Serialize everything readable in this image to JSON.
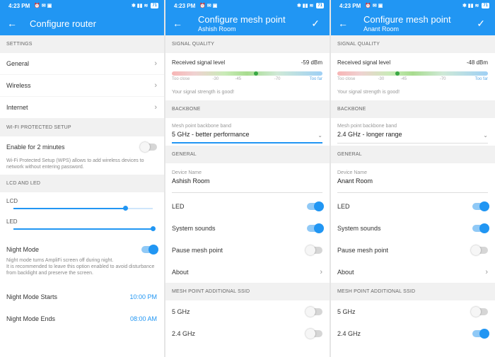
{
  "status_bar": {
    "time": "4:23 PM",
    "battery": "71"
  },
  "colors": {
    "accent": "#2196F3",
    "section_bg": "#f1f1f1"
  },
  "router": {
    "title": "Configure router",
    "settings_header": "SETTINGS",
    "items": [
      "General",
      "Wireless",
      "Internet"
    ],
    "wps_header": "WI-FI PROTECTED SETUP",
    "wps_label": "Enable for 2 minutes",
    "wps_desc": "Wi-Fi Protected Setup (WPS) allows to add wireless devices to network without entering password.",
    "wps_enabled": false,
    "lcd_header": "LCD AND LED",
    "lcd_label": "LCD",
    "lcd_level": 0.8,
    "led_label": "LED",
    "led_level": 1.0,
    "night_mode_label": "Night Mode",
    "night_mode_on": true,
    "night_mode_desc": "Night mode turns AmpliFi screen off during night.\nIt is recommended to leave this option enabled to avoid disturbance from backlight and preserve the screen.",
    "night_start_label": "Night Mode Starts",
    "night_start_value": "10:00 PM",
    "night_end_label": "Night Mode Ends",
    "night_end_value": "08:00 AM"
  },
  "mesh_points": [
    {
      "title": "Configure mesh point",
      "subtitle": "Ashish Room",
      "signal_header": "SIGNAL QUALITY",
      "signal_label": "Received signal level",
      "signal_value": "-59 dBm",
      "signal_pos": 0.56,
      "ticks": [
        "Too close",
        "-30",
        "-45",
        "-70",
        "Too far"
      ],
      "signal_msg": "Your signal strength is good!",
      "backbone_header": "BACKBONE",
      "band_label": "Mesh point backbone band",
      "band_value": "5 GHz - better performance",
      "general_header": "GENERAL",
      "device_label": "Device Name",
      "device_value": "Ashish Room",
      "led_label": "LED",
      "led_on": true,
      "sounds_label": "System sounds",
      "sounds_on": true,
      "pause_label": "Pause mesh point",
      "pause_on": false,
      "about_label": "About",
      "ssid_header": "MESH POINT ADDITIONAL SSID",
      "ssid_5_label": "5 GHz",
      "ssid_5_on": false,
      "ssid_24_label": "2.4 GHz",
      "ssid_24_on": false
    },
    {
      "title": "Configure mesh point",
      "subtitle": "Anant Room",
      "signal_header": "SIGNAL QUALITY",
      "signal_label": "Received signal level",
      "signal_value": "-48 dBm",
      "signal_pos": 0.4,
      "ticks": [
        "Too close",
        "-30",
        "-45",
        "-70",
        "Too far"
      ],
      "signal_msg": "Your signal strength is good!",
      "backbone_header": "BACKBONE",
      "band_label": "Mesh point backbone band",
      "band_value": "2.4 GHz - longer range",
      "general_header": "GENERAL",
      "device_label": "Device Name",
      "device_value": "Anant Room",
      "led_label": "LED",
      "led_on": true,
      "sounds_label": "System sounds",
      "sounds_on": true,
      "pause_label": "Pause mesh point",
      "pause_on": false,
      "about_label": "About",
      "ssid_header": "MESH POINT ADDITIONAL SSID",
      "ssid_5_label": "5 GHz",
      "ssid_5_on": false,
      "ssid_24_label": "2.4 GHz",
      "ssid_24_on": true
    }
  ]
}
